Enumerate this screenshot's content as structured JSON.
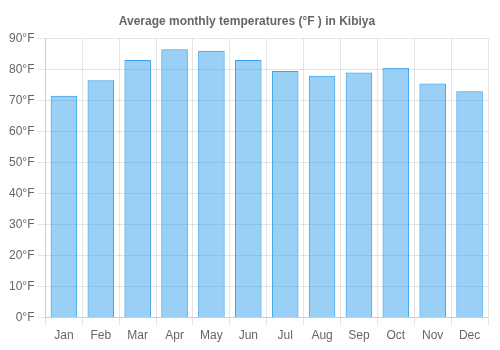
{
  "chart_data": {
    "type": "bar",
    "title": "Average monthly temperatures (°F ) in Kibiya",
    "categories": [
      "Jan",
      "Feb",
      "Mar",
      "Apr",
      "May",
      "Jun",
      "Jul",
      "Aug",
      "Sep",
      "Oct",
      "Nov",
      "Dec"
    ],
    "values": [
      71.5,
      76.5,
      83.0,
      86.5,
      86.0,
      83.0,
      79.5,
      78.0,
      79.0,
      80.5,
      75.5,
      73.0
    ],
    "ylim": [
      0,
      90
    ],
    "yticks": [
      {
        "value": 0,
        "label": "0°F"
      },
      {
        "value": 10,
        "label": "10°F"
      },
      {
        "value": 20,
        "label": "20°F"
      },
      {
        "value": 30,
        "label": "30°F"
      },
      {
        "value": 40,
        "label": "40°F"
      },
      {
        "value": 50,
        "label": "50°F"
      },
      {
        "value": 60,
        "label": "60°F"
      },
      {
        "value": 70,
        "label": "70°F"
      },
      {
        "value": 80,
        "label": "80°F"
      },
      {
        "value": 90,
        "label": "90°F"
      }
    ],
    "grid": true
  }
}
